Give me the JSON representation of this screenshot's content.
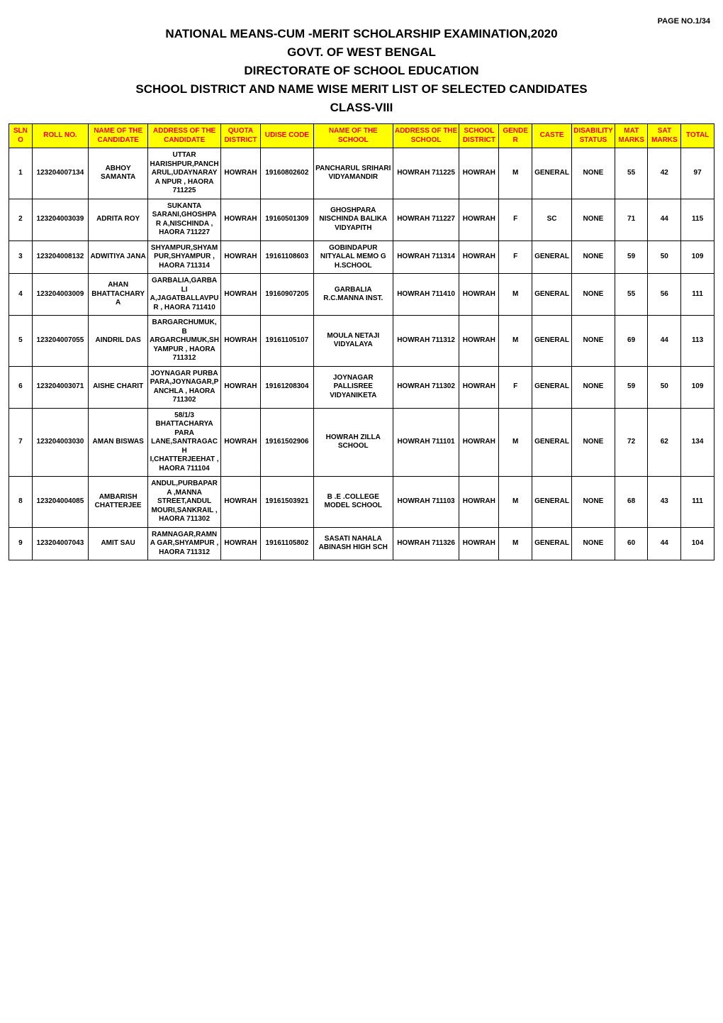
{
  "page_label": "PAGE NO.1/34",
  "titles": {
    "t1": "NATIONAL MEANS-CUM -MERIT SCHOLARSHIP EXAMINATION,2020",
    "t2": "GOVT. OF WEST BENGAL",
    "t3": "DIRECTORATE OF SCHOOL EDUCATION",
    "t4": "SCHOOL DISTRICT AND NAME WISE MERIT LIST OF SELECTED CANDIDATES",
    "t5": "CLASS-VIII"
  },
  "table": {
    "header_bg": "#ffff00",
    "header_color": "#ff0000",
    "border_color": "#000000",
    "row_bg": "#ffffff",
    "cell_fontsize": 10,
    "cell_fontweight": 700,
    "col_widths_pct": [
      3.5,
      8.5,
      9,
      11,
      6,
      8,
      12,
      10,
      6,
      5,
      6,
      6.5,
      5,
      5,
      5
    ],
    "columns": [
      "SLNO",
      "ROLL NO.",
      "NAME OF THE CANDIDATE",
      "ADDRESS OF THE CANDIDATE",
      "QUOTA DISTRICT",
      "UDISE CODE",
      "NAME OF THE SCHOOL",
      "ADDRESS OF THE SCHOOL",
      "SCHOOL DISTRICT",
      "GENDER",
      "CASTE",
      "DISABILITY STATUS",
      "MAT MARKS",
      "SAT MARKS",
      "TOTAL"
    ],
    "rows": [
      [
        "1",
        "123204007134",
        "ABHOY SAMANTA",
        "UTTAR HARISHPUR,PANCH ARUL,UDAYNARAYA NPUR , HAORA 711225",
        "HOWRAH",
        "19160802602",
        "PANCHARUL SRIHARI VIDYAMANDIR",
        "HOWRAH 711225",
        "HOWRAH",
        "M",
        "GENERAL",
        "NONE",
        "55",
        "42",
        "97"
      ],
      [
        "2",
        "123204003039",
        "ADRITA ROY",
        "SUKANTA SARANI,GHOSHPAR A,NISCHINDA , HAORA 711227",
        "HOWRAH",
        "19160501309",
        "GHOSHPARA NISCHINDA BALIKA VIDYAPITH",
        "HOWRAH 711227",
        "HOWRAH",
        "F",
        "SC",
        "NONE",
        "71",
        "44",
        "115"
      ],
      [
        "3",
        "123204008132",
        "ADWITIYA JANA",
        "SHYAMPUR,SHYAM PUR,SHYAMPUR , HAORA 711314",
        "HOWRAH",
        "19161108603",
        "GOBINDAPUR NITYALAL MEMO G H.SCHOOL",
        "HOWRAH 711314",
        "HOWRAH",
        "F",
        "GENERAL",
        "NONE",
        "59",
        "50",
        "109"
      ],
      [
        "4",
        "123204003009",
        "AHAN BHATTACHARYA",
        "GARBALIA,GARBALI A,JAGATBALLAVPU R , HAORA 711410",
        "HOWRAH",
        "19160907205",
        "GARBALIA R.C.MANNA INST.",
        "HOWRAH 711410",
        "HOWRAH",
        "M",
        "GENERAL",
        "NONE",
        "55",
        "56",
        "111"
      ],
      [
        "5",
        "123204007055",
        "AINDRIL DAS",
        "BARGARCHUMUK,B ARGARCHUMUK,SH YAMPUR , HAORA 711312",
        "HOWRAH",
        "19161105107",
        "MOULA NETAJI VIDYALAYA",
        "HOWRAH 711312",
        "HOWRAH",
        "M",
        "GENERAL",
        "NONE",
        "69",
        "44",
        "113"
      ],
      [
        "6",
        "123204003071",
        "AISHE CHARIT",
        "JOYNAGAR PURBA PARA,JOYNAGAR,P ANCHLA , HAORA 711302",
        "HOWRAH",
        "19161208304",
        "JOYNAGAR PALLISREE VIDYANIKETA",
        "HOWRAH 711302",
        "HOWRAH",
        "F",
        "GENERAL",
        "NONE",
        "59",
        "50",
        "109"
      ],
      [
        "7",
        "123204003030",
        "AMAN BISWAS",
        "58/1/3 BHATTACHARYA PARA LANE,SANTRAGACH I,CHATTERJEEHAT , HAORA 711104",
        "HOWRAH",
        "19161502906",
        "HOWRAH ZILLA SCHOOL",
        "HOWRAH 711101",
        "HOWRAH",
        "M",
        "GENERAL",
        "NONE",
        "72",
        "62",
        "134"
      ],
      [
        "8",
        "123204004085",
        "AMBARISH CHATTERJEE",
        "ANDUL,PURBAPARA ,MANNA STREET,ANDUL MOURI,SANKRAIL , HAORA 711302",
        "HOWRAH",
        "19161503921",
        "B .E .COLLEGE MODEL SCHOOL",
        "HOWRAH 711103",
        "HOWRAH",
        "M",
        "GENERAL",
        "NONE",
        "68",
        "43",
        "111"
      ],
      [
        "9",
        "123204007043",
        "AMIT SAU",
        "RAMNAGAR,RAMNA GAR,SHYAMPUR , HAORA 711312",
        "HOWRAH",
        "19161105802",
        "SASATI NAHALA ABINASH HIGH SCH",
        "HOWRAH 711326",
        "HOWRAH",
        "M",
        "GENERAL",
        "NONE",
        "60",
        "44",
        "104"
      ]
    ]
  }
}
